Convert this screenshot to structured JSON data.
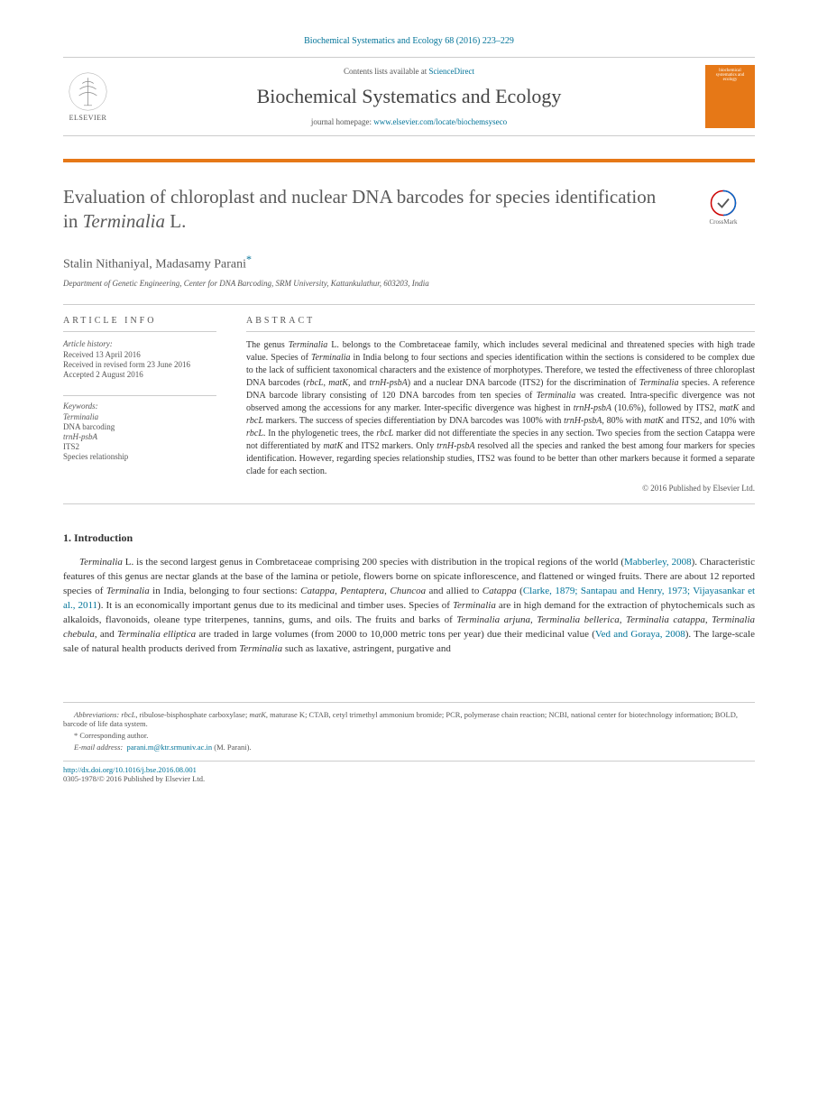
{
  "journal_ref": "Biochemical Systematics and Ecology 68 (2016) 223–229",
  "contents_line_prefix": "Contents lists available at ",
  "contents_link": "ScienceDirect",
  "journal_title": "Biochemical Systematics and Ecology",
  "homepage_prefix": "journal homepage: ",
  "homepage_url": "www.elsevier.com/locate/biochemsyseco",
  "elsevier_label": "ELSEVIER",
  "cover_text": "biochemical systematics and ecology",
  "crossmark_label": "CrossMark",
  "article": {
    "title_html": "Evaluation of chloroplast and nuclear DNA barcodes for species identification in <em>Terminalia</em> L.",
    "authors": "Stalin Nithaniyal, Madasamy Parani",
    "corresponding_mark": "*",
    "affiliation": "Department of Genetic Engineering, Center for DNA Barcoding, SRM University, Kattankulathur, 603203, India"
  },
  "info": {
    "heading": "ARTICLE INFO",
    "history_label": "Article history:",
    "history": [
      "Received 13 April 2016",
      "Received in revised form 23 June 2016",
      "Accepted 2 August 2016"
    ],
    "keywords_label": "Keywords:",
    "keywords_html": [
      "<em>Terminalia</em>",
      "DNA barcoding",
      "<em>trnH-psbA</em>",
      "ITS2",
      "Species relationship"
    ]
  },
  "abstract": {
    "heading": "ABSTRACT",
    "text_html": "The genus <em>Terminalia</em> L. belongs to the Combretaceae family, which includes several medicinal and threatened species with high trade value. Species of <em>Terminalia</em> in India belong to four sections and species identification within the sections is considered to be complex due to the lack of sufficient taxonomical characters and the existence of morphotypes. Therefore, we tested the effectiveness of three chloroplast DNA barcodes (<em>rbcL</em>, <em>matK</em>, and <em>trnH-psbA</em>) and a nuclear DNA barcode (ITS2) for the discrimination of <em>Terminalia</em> species. A reference DNA barcode library consisting of 120 DNA barcodes from ten species of <em>Terminalia</em> was created. Intra-specific divergence was not observed among the accessions for any marker. Inter-specific divergence was highest in <em>trnH-psbA</em> (10.6%), followed by ITS2, <em>matK</em> and <em>rbcL</em> markers. The success of species differentiation by DNA barcodes was 100% with <em>trnH-psbA</em>, 80% with <em>matK</em> and ITS2, and 10% with <em>rbcL</em>. In the phylogenetic trees, the <em>rbcL</em> marker did not differentiate the species in any section. Two species from the section Catappa were not differentiated by <em>matK</em> and ITS2 markers. Only <em>trnH-psbA</em> resolved all the species and ranked the best among four markers for species identification. However, regarding species relationship studies, ITS2 was found to be better than other markers because it formed a separate clade for each section.",
    "copyright": "© 2016 Published by Elsevier Ltd."
  },
  "intro": {
    "heading": "1. Introduction",
    "para_html": "<em>Terminalia</em> L. is the second largest genus in Combretaceae comprising 200 species with distribution in the tropical regions of the world (<a>Mabberley, 2008</a>). Characteristic features of this genus are nectar glands at the base of the lamina or petiole, flowers borne on spicate inflorescence, and flattened or winged fruits. There are about 12 reported species of <em>Terminalia</em> in India, belonging to four sections: <em>Catappa</em>, <em>Pentaptera</em>, <em>Chuncoa</em> and allied to <em>Catappa</em> (<a>Clarke, 1879; Santapau and Henry, 1973; Vijayasankar et al., 2011</a>). It is an economically important genus due to its medicinal and timber uses. Species of <em>Terminalia</em> are in high demand for the extraction of phytochemicals such as alkaloids, flavonoids, oleane type triterpenes, tannins, gums, and oils. The fruits and barks of <em>Terminalia arjuna</em>, <em>Terminalia bellerica</em>, <em>Terminalia catappa</em>, <em>Terminalia chebula</em>, and <em>Terminalia elliptica</em> are traded in large volumes (from 2000 to 10,000 metric tons per year) due their medicinal value (<a>Ved and Goraya, 2008</a>). The large-scale sale of natural health products derived from <em>Terminalia</em> such as laxative, astringent, purgative and"
  },
  "footer": {
    "abbrev_label": "Abbreviations:",
    "abbrev_text_html": " <em>rbcL</em>, ribulose-bisphosphate carboxylase; <em>matK</em>, maturase K; CTAB, cetyl trimethyl ammonium bromide; PCR, polymerase chain reaction; NCBI, national center for biotechnology information; BOLD, barcode of life data system.",
    "corresponding": "* Corresponding author.",
    "email_label": "E-mail address:",
    "email": "parani.m@ktr.srmuniv.ac.in",
    "email_suffix": " (M. Parani).",
    "doi": "http://dx.doi.org/10.1016/j.bse.2016.08.001",
    "issn_line": "0305-1978/© 2016 Published by Elsevier Ltd."
  },
  "colors": {
    "link": "#007398",
    "accent": "#e67817",
    "text": "#333333",
    "muted": "#555555",
    "border": "#cccccc"
  }
}
